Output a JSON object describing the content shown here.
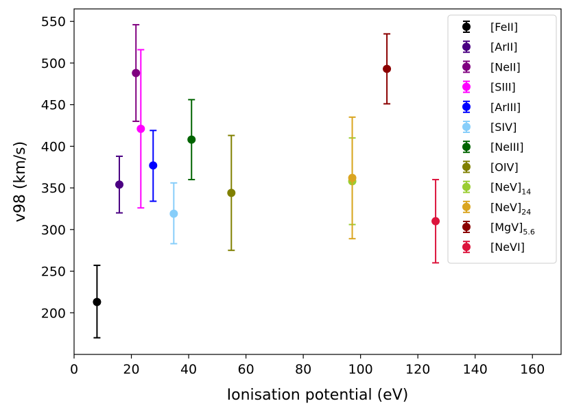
{
  "chart_data": {
    "type": "scatter",
    "title": "",
    "xlabel": "Ionisation potential (eV)",
    "ylabel": "v98 (km/s)",
    "xlim": [
      0,
      170
    ],
    "ylim": [
      150,
      565
    ],
    "xticks": [
      0,
      20,
      40,
      60,
      80,
      100,
      120,
      140,
      160
    ],
    "yticks": [
      200,
      250,
      300,
      350,
      400,
      450,
      500,
      550
    ],
    "legend_position": "top-right",
    "series": [
      {
        "name": "[FeII]",
        "sub": "",
        "color": "#000000",
        "x": 8.0,
        "y": 213,
        "err_low": 170,
        "err_high": 257
      },
      {
        "name": "[ArII]",
        "sub": "",
        "color": "#4b0082",
        "x": 15.8,
        "y": 354,
        "err_low": 320,
        "err_high": 388
      },
      {
        "name": "[NeII]",
        "sub": "",
        "color": "#800080",
        "x": 21.6,
        "y": 488,
        "err_low": 430,
        "err_high": 546
      },
      {
        "name": "[SIII]",
        "sub": "",
        "color": "#ff00ff",
        "x": 23.3,
        "y": 421,
        "err_low": 326,
        "err_high": 516
      },
      {
        "name": "[ArIII]",
        "sub": "",
        "color": "#0000ff",
        "x": 27.6,
        "y": 377,
        "err_low": 334,
        "err_high": 419
      },
      {
        "name": "[SIV]",
        "sub": "",
        "color": "#87cefa",
        "x": 34.8,
        "y": 319,
        "err_low": 283,
        "err_high": 356
      },
      {
        "name": "[NeIII]",
        "sub": "",
        "color": "#006400",
        "x": 41.0,
        "y": 408,
        "err_low": 360,
        "err_high": 456
      },
      {
        "name": "[OIV]",
        "sub": "",
        "color": "#808000",
        "x": 54.9,
        "y": 344,
        "err_low": 275,
        "err_high": 413
      },
      {
        "name": "[NeV]",
        "sub": "14",
        "color": "#9acd32",
        "x": 97.1,
        "y": 358,
        "err_low": 306,
        "err_high": 410
      },
      {
        "name": "[NeV]",
        "sub": "24",
        "color": "#daa520",
        "x": 97.1,
        "y": 362,
        "err_low": 289,
        "err_high": 435
      },
      {
        "name": "[MgV]",
        "sub": "5.6",
        "color": "#8b0000",
        "x": 109.2,
        "y": 493,
        "err_low": 451,
        "err_high": 535
      },
      {
        "name": "[NeVI]",
        "sub": "",
        "color": "#dc143c",
        "x": 126.2,
        "y": 310,
        "err_low": 260,
        "err_high": 360
      }
    ]
  }
}
